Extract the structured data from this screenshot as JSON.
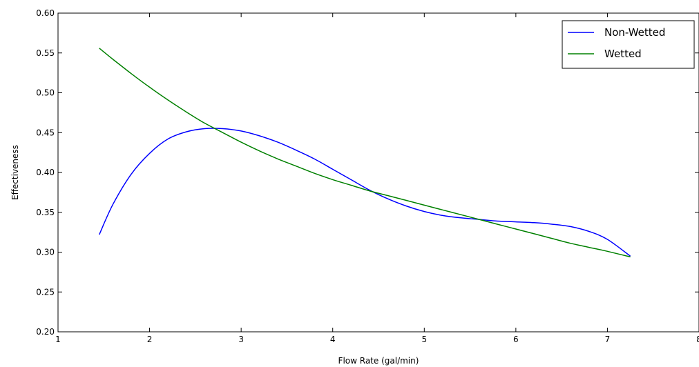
{
  "chart_data": {
    "type": "line",
    "title": "",
    "xlabel": "Flow Rate (gal/min)",
    "ylabel": "Effectiveness",
    "xlim": [
      1,
      8
    ],
    "ylim": [
      0.2,
      0.6
    ],
    "xticks": [
      1,
      2,
      3,
      4,
      5,
      6,
      7,
      8
    ],
    "yticks": [
      0.2,
      0.25,
      0.3,
      0.35,
      0.4,
      0.45,
      0.5,
      0.55,
      0.6
    ],
    "xtick_labels": [
      "1",
      "2",
      "3",
      "4",
      "5",
      "6",
      "7",
      "8"
    ],
    "ytick_labels": [
      "0.20",
      "0.25",
      "0.30",
      "0.35",
      "0.40",
      "0.45",
      "0.50",
      "0.55",
      "0.60"
    ],
    "grid": false,
    "legend_position": "top-right",
    "series": [
      {
        "name": "Non-Wetted",
        "color": "#0000ff",
        "x": [
          1.45,
          1.6,
          1.8,
          2.0,
          2.2,
          2.4,
          2.6,
          2.8,
          3.0,
          3.2,
          3.4,
          3.6,
          3.8,
          4.0,
          4.2,
          4.4,
          4.6,
          4.8,
          5.0,
          5.2,
          5.4,
          5.6,
          5.8,
          6.0,
          6.2,
          6.4,
          6.6,
          6.8,
          7.0,
          7.25
        ],
        "y": [
          0.322,
          0.36,
          0.398,
          0.424,
          0.442,
          0.451,
          0.455,
          0.455,
          0.452,
          0.446,
          0.438,
          0.428,
          0.417,
          0.404,
          0.391,
          0.378,
          0.367,
          0.358,
          0.351,
          0.346,
          0.343,
          0.341,
          0.339,
          0.338,
          0.337,
          0.335,
          0.332,
          0.326,
          0.316,
          0.295
        ]
      },
      {
        "name": "Wetted",
        "color": "#008000",
        "x": [
          1.45,
          1.6,
          1.8,
          2.0,
          2.2,
          2.4,
          2.6,
          2.8,
          3.0,
          3.2,
          3.4,
          3.6,
          3.8,
          4.0,
          4.2,
          4.4,
          4.6,
          4.8,
          5.0,
          5.2,
          5.4,
          5.6,
          5.8,
          6.0,
          6.2,
          6.4,
          6.6,
          6.8,
          7.0,
          7.25
        ],
        "y": [
          0.556,
          0.542,
          0.524,
          0.507,
          0.491,
          0.476,
          0.462,
          0.45,
          0.438,
          0.427,
          0.417,
          0.408,
          0.399,
          0.391,
          0.384,
          0.377,
          0.371,
          0.365,
          0.359,
          0.353,
          0.347,
          0.341,
          0.335,
          0.329,
          0.323,
          0.317,
          0.311,
          0.306,
          0.301,
          0.294
        ]
      }
    ]
  }
}
